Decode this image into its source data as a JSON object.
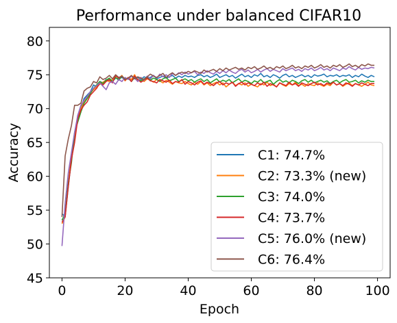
{
  "chart_data": {
    "type": "line",
    "title": "Performance under balanced CIFAR10",
    "xlabel": "Epoch",
    "ylabel": "Accuracy",
    "xlim": [
      -4,
      104
    ],
    "ylim": [
      45,
      82
    ],
    "xticks": [
      0,
      20,
      40,
      60,
      80,
      100
    ],
    "yticks": [
      45,
      50,
      55,
      60,
      65,
      70,
      75,
      80
    ],
    "grid": false,
    "legend_position": "lower-right",
    "x": [
      0,
      1,
      2,
      3,
      4,
      5,
      6,
      7,
      8,
      9,
      10,
      11,
      12,
      13,
      14,
      15,
      16,
      17,
      18,
      19,
      20,
      21,
      22,
      23,
      24,
      25,
      26,
      27,
      28,
      29,
      30,
      31,
      32,
      33,
      34,
      35,
      36,
      37,
      38,
      39,
      40,
      41,
      42,
      43,
      44,
      45,
      46,
      47,
      48,
      49,
      50,
      51,
      52,
      53,
      54,
      55,
      56,
      57,
      58,
      59,
      60,
      61,
      62,
      63,
      64,
      65,
      66,
      67,
      68,
      69,
      70,
      71,
      72,
      73,
      74,
      75,
      76,
      77,
      78,
      79,
      80,
      81,
      82,
      83,
      84,
      85,
      86,
      87,
      88,
      89,
      90,
      91,
      92,
      93,
      94,
      95,
      96,
      97,
      98,
      99
    ],
    "series": [
      {
        "name": "C1: 74.7%",
        "color": "#1f77b4",
        "values": [
          54.5,
          54.0,
          58.5,
          62.5,
          65.5,
          69.0,
          70.0,
          71.5,
          72.0,
          72.5,
          73.5,
          73.2,
          74.0,
          73.8,
          74.3,
          74.1,
          74.0,
          74.5,
          74.4,
          74.6,
          74.3,
          74.5,
          74.8,
          74.4,
          74.6,
          74.3,
          74.7,
          74.5,
          74.6,
          74.9,
          74.4,
          74.6,
          74.8,
          74.5,
          74.7,
          74.9,
          74.5,
          74.8,
          74.6,
          74.9,
          74.7,
          74.8,
          74.6,
          74.9,
          75.0,
          74.7,
          74.9,
          74.6,
          74.8,
          75.1,
          74.6,
          74.8,
          75.0,
          74.7,
          74.9,
          74.5,
          74.8,
          75.1,
          74.7,
          74.9,
          74.6,
          75.0,
          74.8,
          75.2,
          74.7,
          74.9,
          74.6,
          75.0,
          74.8,
          74.5,
          74.9,
          75.1,
          74.7,
          74.9,
          74.6,
          74.8,
          75.0,
          74.7,
          74.9,
          74.6,
          75.0,
          74.8,
          74.9,
          75.1,
          74.7,
          74.9,
          74.8,
          75.0,
          74.7,
          74.9,
          74.8,
          75.0,
          74.6,
          74.9,
          74.7,
          75.1,
          74.8,
          74.6,
          74.9,
          74.7
        ]
      },
      {
        "name": "C2: 73.3% (new)",
        "color": "#ff7f0e",
        "values": [
          53.0,
          54.0,
          59.0,
          63.0,
          66.0,
          68.5,
          70.0,
          71.0,
          71.8,
          72.3,
          72.8,
          73.2,
          73.6,
          73.9,
          74.2,
          74.0,
          74.3,
          74.8,
          74.5,
          74.9,
          74.1,
          74.6,
          74.3,
          75.0,
          74.2,
          74.6,
          74.0,
          74.4,
          74.2,
          73.9,
          74.3,
          74.1,
          73.8,
          74.2,
          73.9,
          73.6,
          74.0,
          73.8,
          73.7,
          74.0,
          73.7,
          73.5,
          73.9,
          73.6,
          74.0,
          73.5,
          73.8,
          73.4,
          73.7,
          73.9,
          73.5,
          73.8,
          73.2,
          73.6,
          73.9,
          73.4,
          73.7,
          73.5,
          73.8,
          73.3,
          73.6,
          73.4,
          73.2,
          73.7,
          73.5,
          73.9,
          73.4,
          73.6,
          73.2,
          73.8,
          73.5,
          73.3,
          73.7,
          73.5,
          73.9,
          73.4,
          73.6,
          73.3,
          73.7,
          73.5,
          73.4,
          73.8,
          73.5,
          73.3,
          73.6,
          73.4,
          73.9,
          73.5,
          73.7,
          73.3,
          73.6,
          73.8,
          73.4,
          73.7,
          73.5,
          73.3,
          73.6,
          73.9,
          73.5,
          73.4
        ]
      },
      {
        "name": "C3: 74.0%",
        "color": "#2ca02c",
        "values": [
          53.5,
          54.5,
          59.0,
          62.0,
          66.5,
          68.0,
          69.5,
          70.8,
          71.5,
          72.2,
          73.0,
          73.5,
          74.0,
          73.7,
          74.2,
          74.5,
          74.0,
          74.6,
          74.2,
          74.8,
          74.4,
          74.5,
          74.0,
          74.6,
          74.3,
          74.1,
          74.4,
          74.6,
          74.2,
          74.5,
          74.3,
          74.0,
          74.4,
          74.6,
          74.1,
          74.3,
          74.5,
          74.0,
          74.2,
          74.4,
          74.1,
          74.3,
          73.9,
          74.2,
          74.4,
          74.0,
          74.3,
          73.8,
          74.1,
          74.4,
          73.9,
          74.2,
          74.0,
          74.3,
          73.8,
          74.1,
          74.4,
          73.9,
          74.2,
          74.0,
          73.7,
          74.1,
          73.9,
          74.3,
          73.8,
          74.0,
          74.2,
          73.6,
          74.0,
          74.3,
          73.9,
          74.1,
          73.8,
          74.2,
          74.0,
          73.7,
          74.1,
          74.3,
          73.9,
          74.2,
          73.8,
          74.0,
          74.2,
          73.9,
          74.1,
          73.7,
          74.0,
          74.2,
          73.8,
          74.1,
          74.3,
          73.9,
          74.0,
          74.2,
          73.8,
          74.1,
          73.9,
          74.2,
          74.0,
          74.0
        ]
      },
      {
        "name": "C4: 73.7%",
        "color": "#d62728",
        "values": [
          53.2,
          54.0,
          58.5,
          62.5,
          65.0,
          68.5,
          69.8,
          70.5,
          71.0,
          72.0,
          72.5,
          73.0,
          73.8,
          73.5,
          74.0,
          74.3,
          73.8,
          74.9,
          74.5,
          74.8,
          74.2,
          74.6,
          74.0,
          74.8,
          74.3,
          73.9,
          74.2,
          74.5,
          74.1,
          74.0,
          73.8,
          74.3,
          74.1,
          73.9,
          74.2,
          73.7,
          74.0,
          73.9,
          74.3,
          73.6,
          74.0,
          73.8,
          73.5,
          73.9,
          74.1,
          73.6,
          73.9,
          73.7,
          73.4,
          73.8,
          74.0,
          73.5,
          73.8,
          73.6,
          73.9,
          73.3,
          73.7,
          73.9,
          73.5,
          73.8,
          73.6,
          73.4,
          73.8,
          73.5,
          73.9,
          73.3,
          73.7,
          73.5,
          73.2,
          73.8,
          73.6,
          73.4,
          73.9,
          73.5,
          73.7,
          73.3,
          73.8,
          73.6,
          73.4,
          73.7,
          73.9,
          73.5,
          73.7,
          73.4,
          73.8,
          73.6,
          73.9,
          73.5,
          73.7,
          73.4,
          73.8,
          73.6,
          73.3,
          73.7,
          73.5,
          73.8,
          73.6,
          73.4,
          73.7,
          73.7
        ]
      },
      {
        "name": "C5: 76.0% (new)",
        "color": "#9467bd",
        "values": [
          49.7,
          56.0,
          60.5,
          63.5,
          66.5,
          69.0,
          70.5,
          71.2,
          71.8,
          72.5,
          73.0,
          73.4,
          73.8,
          73.3,
          72.8,
          73.8,
          74.0,
          73.6,
          74.3,
          74.0,
          74.6,
          74.3,
          74.8,
          74.5,
          74.0,
          74.6,
          74.2,
          74.8,
          74.4,
          74.9,
          74.5,
          75.1,
          74.7,
          75.0,
          74.6,
          75.2,
          74.9,
          75.3,
          75.0,
          75.4,
          75.1,
          75.3,
          75.5,
          75.0,
          75.4,
          75.2,
          75.6,
          75.3,
          75.1,
          75.5,
          75.2,
          75.6,
          75.3,
          75.7,
          75.4,
          75.2,
          75.6,
          75.8,
          75.4,
          75.7,
          75.3,
          75.5,
          75.8,
          75.4,
          75.7,
          75.9,
          75.5,
          75.8,
          75.6,
          75.4,
          75.9,
          75.6,
          75.8,
          76.0,
          75.6,
          75.8,
          75.5,
          75.9,
          75.7,
          76.0,
          75.6,
          75.8,
          76.1,
          75.7,
          75.9,
          75.6,
          76.0,
          75.8,
          75.6,
          76.0,
          75.8,
          76.2,
          75.9,
          75.7,
          76.1,
          75.8,
          76.0,
          75.9,
          76.1,
          76.0
        ]
      },
      {
        "name": "C6: 76.4%",
        "color": "#8c564b",
        "values": [
          54.0,
          63.0,
          65.5,
          67.5,
          70.5,
          70.5,
          70.8,
          72.6,
          73.0,
          73.2,
          74.0,
          73.8,
          74.7,
          74.3,
          74.5,
          74.9,
          74.4,
          75.0,
          74.6,
          74.8,
          74.3,
          74.5,
          74.9,
          74.4,
          74.7,
          74.5,
          74.3,
          74.7,
          75.1,
          74.8,
          74.6,
          74.9,
          75.2,
          74.6,
          75.0,
          75.3,
          74.9,
          75.2,
          75.4,
          75.2,
          75.5,
          75.3,
          75.6,
          75.4,
          75.2,
          75.7,
          75.4,
          75.6,
          75.8,
          75.5,
          75.9,
          75.6,
          76.0,
          75.7,
          75.9,
          76.1,
          75.8,
          76.0,
          75.7,
          76.1,
          75.9,
          76.2,
          75.8,
          76.0,
          76.3,
          75.9,
          76.1,
          75.8,
          76.2,
          76.0,
          76.3,
          75.9,
          76.1,
          76.4,
          76.0,
          76.2,
          75.9,
          76.3,
          76.1,
          76.4,
          76.0,
          76.2,
          76.5,
          76.1,
          76.3,
          76.0,
          76.4,
          76.2,
          76.5,
          76.1,
          76.3,
          76.6,
          76.2,
          76.4,
          76.1,
          76.5,
          76.3,
          76.6,
          76.4,
          76.4
        ]
      }
    ]
  }
}
